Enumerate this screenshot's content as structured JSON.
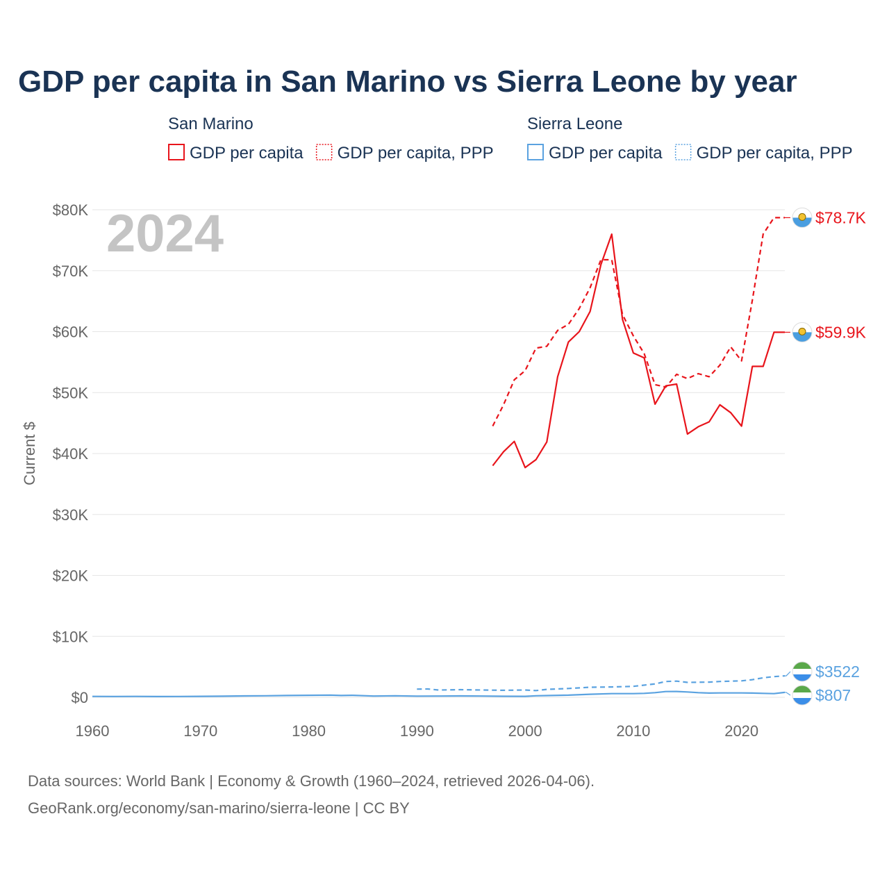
{
  "chart_data": {
    "type": "line",
    "title": "GDP per capita in San Marino vs Sierra Leone by year",
    "ylabel": "Current $",
    "xlabel": "",
    "xlim": [
      1960,
      2024
    ],
    "ylim": [
      0,
      80000
    ],
    "x_ticks": [
      1960,
      1970,
      1980,
      1990,
      2000,
      2010,
      2020
    ],
    "x_tick_labels": [
      "1960",
      "1970",
      "1980",
      "1990",
      "2000",
      "2010",
      "2020"
    ],
    "y_ticks": [
      0,
      10000,
      20000,
      30000,
      40000,
      50000,
      60000,
      70000,
      80000
    ],
    "y_tick_labels": [
      "$0",
      "$10K",
      "$20K",
      "$30K",
      "$40K",
      "$50K",
      "$60K",
      "$70K",
      "$80K"
    ],
    "grid": true,
    "current_year": "2024",
    "legend_groups": [
      {
        "country": "San Marino",
        "color": "#e8141b",
        "items": [
          {
            "label": "GDP per capita",
            "style": "solid"
          },
          {
            "label": "GDP per capita, PPP",
            "style": "dotted"
          }
        ]
      },
      {
        "country": "Sierra Leone",
        "color": "#5aa2e0",
        "items": [
          {
            "label": "GDP per capita",
            "style": "solid"
          },
          {
            "label": "GDP per capita, PPP",
            "style": "dotted"
          }
        ]
      }
    ],
    "series": [
      {
        "name": "San Marino GDP per capita",
        "country": "San Marino",
        "color": "#e8141b",
        "dash": false,
        "end_label": "$59.9K",
        "x": [
          1997,
          1998,
          1999,
          2000,
          2001,
          2002,
          2003,
          2004,
          2005,
          2006,
          2007,
          2008,
          2009,
          2010,
          2011,
          2012,
          2013,
          2014,
          2015,
          2016,
          2017,
          2018,
          2019,
          2020,
          2021,
          2022,
          2023,
          2024
        ],
        "values": [
          38000,
          40300,
          42000,
          37700,
          39000,
          41900,
          52600,
          58300,
          60000,
          63300,
          71000,
          76000,
          62000,
          56500,
          55700,
          48100,
          51100,
          51400,
          43200,
          44400,
          45200,
          48000,
          46700,
          44500,
          54300,
          54300,
          59900,
          59900
        ]
      },
      {
        "name": "San Marino GDP per capita, PPP",
        "country": "San Marino",
        "color": "#e8141b",
        "dash": true,
        "end_label": "$78.7K",
        "x": [
          1997,
          1998,
          1999,
          2000,
          2001,
          2002,
          2003,
          2004,
          2005,
          2006,
          2007,
          2008,
          2009,
          2010,
          2011,
          2012,
          2013,
          2014,
          2015,
          2016,
          2017,
          2018,
          2019,
          2020,
          2021,
          2022,
          2023,
          2024
        ],
        "values": [
          44500,
          48000,
          52100,
          53600,
          57300,
          57600,
          60200,
          61200,
          63800,
          67200,
          71800,
          71800,
          62800,
          59300,
          56400,
          51300,
          50900,
          53000,
          52300,
          53100,
          52600,
          54500,
          57500,
          55200,
          65200,
          76000,
          78700,
          78700
        ]
      },
      {
        "name": "Sierra Leone GDP per capita",
        "country": "Sierra Leone",
        "color": "#5aa2e0",
        "dash": false,
        "end_label": "$807",
        "x": [
          1960,
          1962,
          1964,
          1966,
          1968,
          1970,
          1972,
          1974,
          1976,
          1978,
          1980,
          1982,
          1983,
          1984,
          1986,
          1988,
          1990,
          1992,
          1994,
          1996,
          1998,
          2000,
          2001,
          2002,
          2004,
          2006,
          2008,
          2010,
          2011,
          2012,
          2013,
          2014,
          2015,
          2016,
          2017,
          2018,
          2019,
          2020,
          2021,
          2022,
          2023,
          2024
        ],
        "values": [
          150,
          140,
          150,
          130,
          140,
          160,
          180,
          230,
          250,
          300,
          330,
          350,
          300,
          330,
          200,
          250,
          190,
          200,
          230,
          210,
          170,
          160,
          250,
          280,
          350,
          500,
          600,
          600,
          650,
          760,
          950,
          960,
          880,
          760,
          690,
          720,
          720,
          720,
          700,
          650,
          600,
          807
        ]
      },
      {
        "name": "Sierra Leone GDP per capita, PPP",
        "country": "Sierra Leone",
        "color": "#5aa2e0",
        "dash": true,
        "end_label": "$3522",
        "x": [
          1990,
          1991,
          1992,
          1994,
          1996,
          1998,
          2000,
          2001,
          2002,
          2004,
          2006,
          2008,
          2010,
          2012,
          2013,
          2014,
          2015,
          2017,
          2018,
          2020,
          2021,
          2022,
          2023,
          2024
        ],
        "values": [
          1350,
          1370,
          1200,
          1250,
          1200,
          1150,
          1200,
          1100,
          1300,
          1450,
          1650,
          1700,
          1800,
          2200,
          2600,
          2650,
          2450,
          2500,
          2600,
          2700,
          2900,
          3200,
          3400,
          3522
        ]
      }
    ]
  },
  "source": {
    "line1": "Data sources: World Bank | Economy & Growth (1960–2024, retrieved 2026-04-06).",
    "line2": "GeoRank.org/economy/san-marino/sierra-leone | CC BY"
  }
}
